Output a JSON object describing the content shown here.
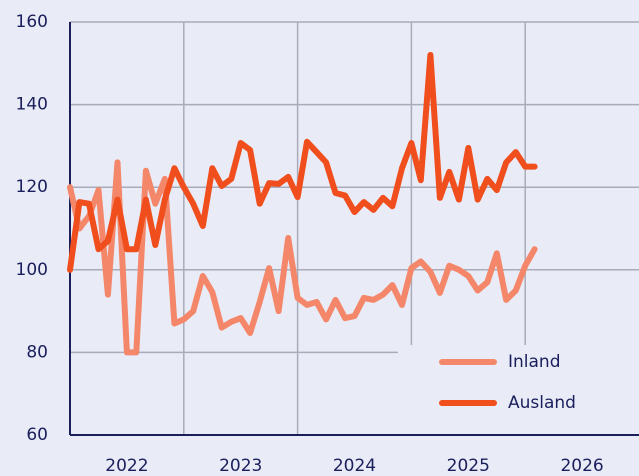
{
  "chart_data": {
    "type": "line",
    "x": [
      2022,
      2022.083,
      2022.167,
      2022.25,
      2022.333,
      2022.417,
      2022.5,
      2022.583,
      2022.667,
      2022.75,
      2022.833,
      2022.917,
      2023,
      2023.083,
      2023.167,
      2023.25,
      2023.333,
      2023.417,
      2023.5,
      2023.583,
      2023.667,
      2023.75,
      2023.833,
      2023.917,
      2024,
      2024.083,
      2024.167,
      2024.25,
      2024.333,
      2024.417,
      2024.5,
      2024.583,
      2024.667,
      2024.75,
      2024.833,
      2024.917,
      2025,
      2025.083,
      2025.167,
      2025.25,
      2025.333,
      2025.417,
      2025.5,
      2025.583,
      2025.667,
      2025.75,
      2025.833,
      2025.917,
      2026,
      2026.083
    ],
    "series": [
      {
        "name": "Inland",
        "color": "#f4876a",
        "values": [
          120,
          110,
          113,
          119.3,
          94,
          126,
          80,
          80,
          124,
          116,
          122,
          87,
          88,
          90,
          98.5,
          94.6,
          86,
          87.4,
          88.3,
          84.7,
          92.2,
          100.4,
          90,
          107.7,
          93.2,
          91.5,
          92.2,
          88,
          92.7,
          88.3,
          88.8,
          93.2,
          92.7,
          94,
          96.3,
          91.5,
          100.4,
          102,
          99.5,
          94.4,
          101,
          100,
          98.5,
          95,
          97,
          104,
          92.7,
          95,
          101,
          105
        ]
      },
      {
        "name": "Ausland",
        "color": "#f04e1c",
        "values": [
          100,
          116.4,
          116,
          105,
          107,
          117,
          105,
          105,
          117,
          106,
          117,
          124.6,
          120,
          116,
          110.6,
          124.6,
          120.3,
          122,
          130.7,
          129,
          116,
          121,
          120.8,
          122.5,
          117.6,
          131,
          128.5,
          126,
          118.6,
          118,
          114,
          116.4,
          114.5,
          117.4,
          115.4,
          124.6,
          130.7,
          121.7,
          152,
          117.4,
          123.7,
          117,
          129.5,
          117,
          122,
          119.3,
          126,
          128.5,
          125,
          125
        ]
      }
    ],
    "xlim": [
      2022,
      2027
    ],
    "xticks": [
      2022,
      2023,
      2024,
      2025,
      2026
    ],
    "ylim": [
      60,
      160
    ],
    "yticks": [
      60,
      80,
      100,
      120,
      140,
      160
    ],
    "grid": true,
    "legend": "lower right"
  }
}
